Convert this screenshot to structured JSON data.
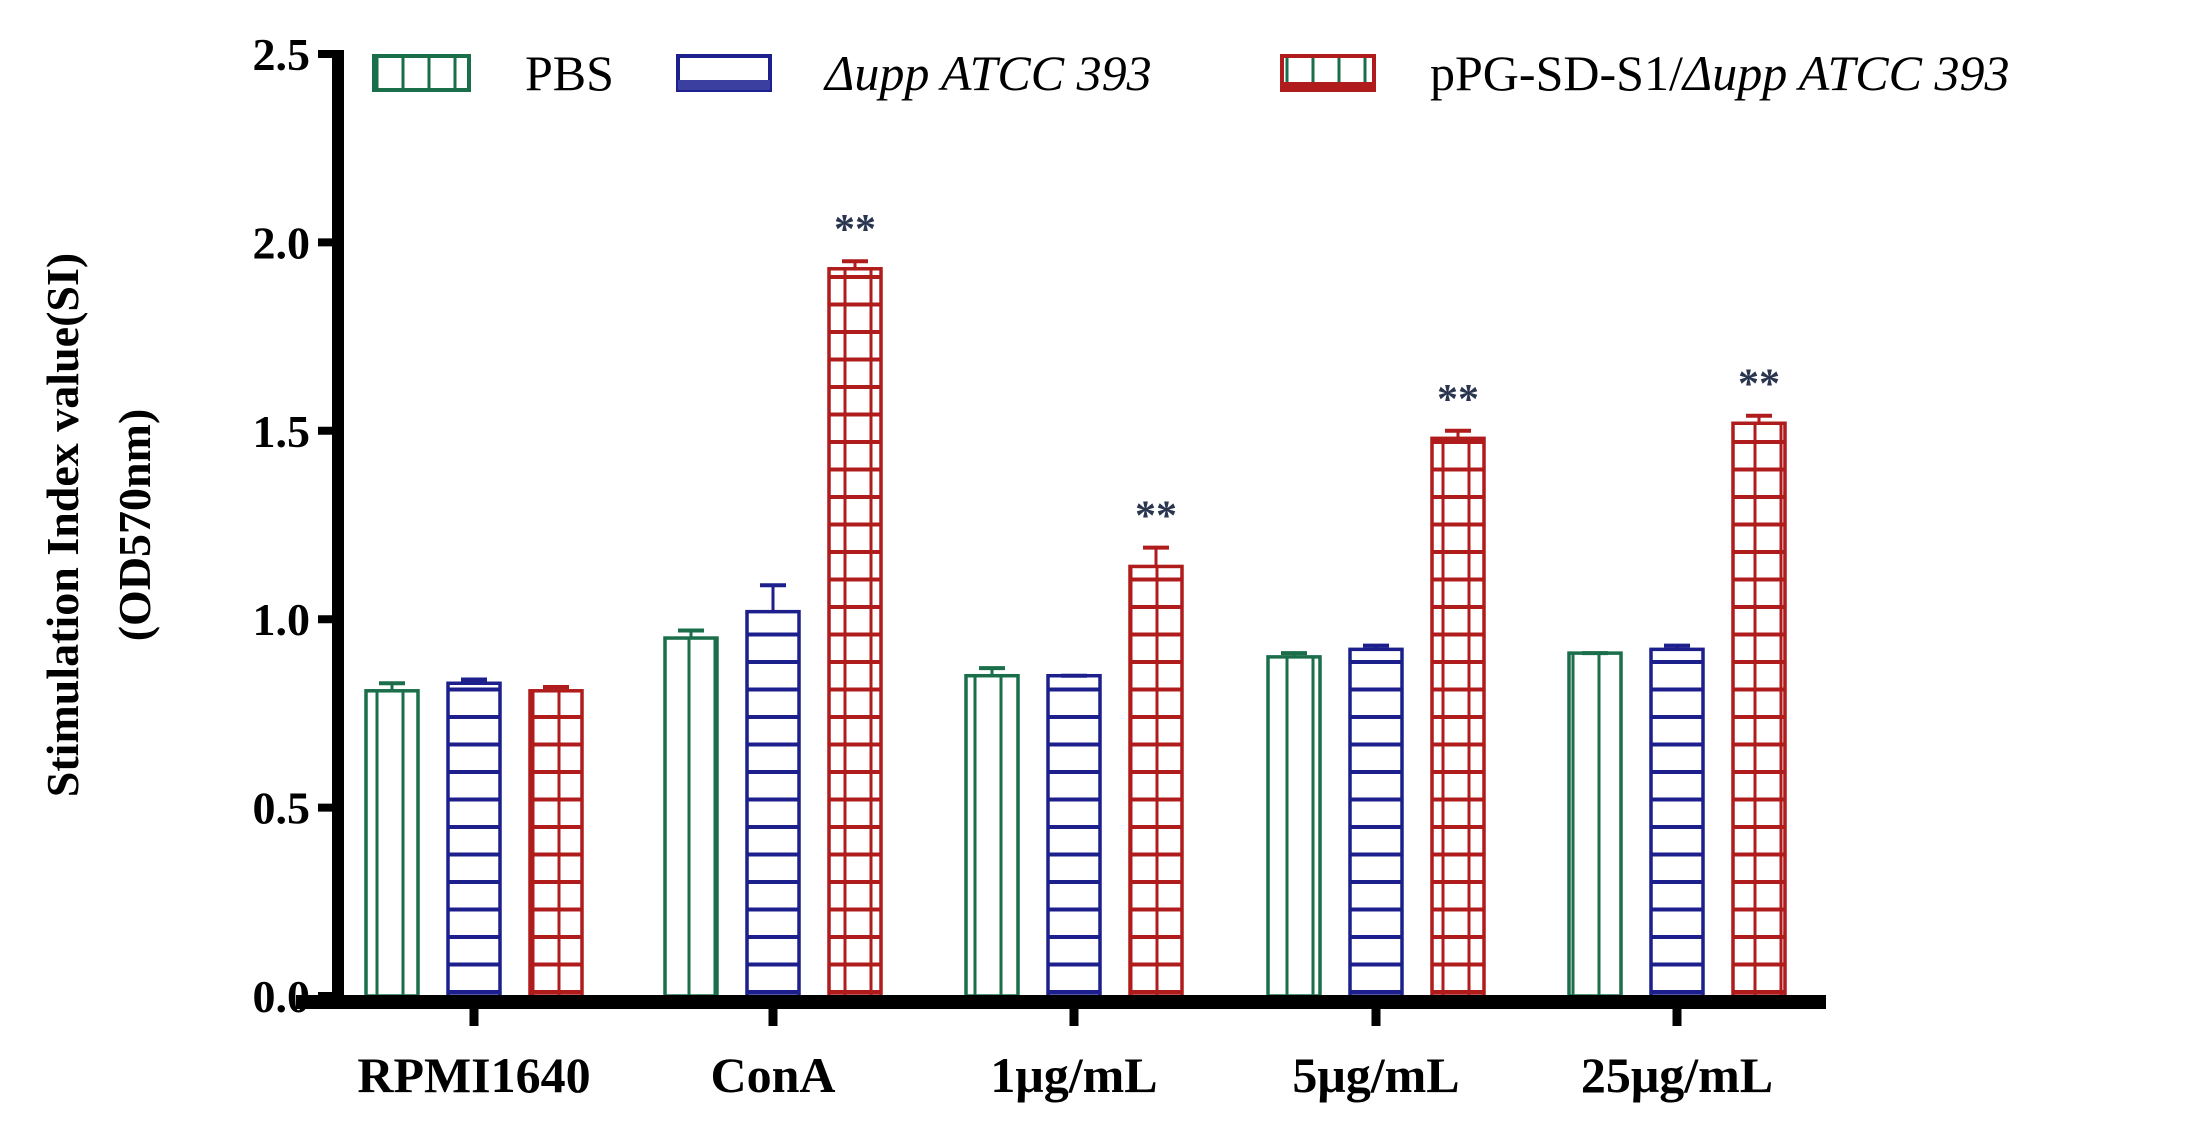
{
  "chart_data": {
    "type": "bar",
    "title": "",
    "xlabel": "",
    "ylabel": [
      "Stimulation Index value(SI)",
      "(OD570nm)"
    ],
    "ylim": [
      0,
      2.5
    ],
    "yticks": [
      "0.0",
      "0.5",
      "1.0",
      "1.5",
      "2.0",
      "2.5"
    ],
    "ytick_values": [
      0,
      0.5,
      1.0,
      1.5,
      2.0,
      2.5
    ],
    "categories": [
      "RPMI1640",
      "ConA",
      "1μg/mL",
      "5μg/mL",
      "25μg/mL"
    ],
    "legend_position": "top",
    "series": [
      {
        "name": "PBS",
        "italic": false,
        "color": "#1a6e4a",
        "pattern": "vertical",
        "values": [
          0.81,
          0.95,
          0.85,
          0.9,
          0.91
        ],
        "error_upper": [
          0.83,
          0.97,
          0.87,
          0.91,
          0.91
        ]
      },
      {
        "name": "Δupp ATCC 393",
        "italic": true,
        "color": "#1c1f8c",
        "pattern": "horizontal",
        "values": [
          0.83,
          1.02,
          0.85,
          0.92,
          0.92
        ],
        "error_upper": [
          0.84,
          1.09,
          0.85,
          0.93,
          0.93
        ]
      },
      {
        "name_plain": "pPG-SD-S1/",
        "name_italic": "Δupp ATCC 393",
        "color": "#b01c1c",
        "pattern": "grid",
        "values": [
          0.81,
          1.93,
          1.14,
          1.48,
          1.52
        ],
        "error_upper": [
          0.82,
          1.95,
          1.19,
          1.5,
          1.54
        ]
      }
    ],
    "annotations": [
      {
        "category": "ConA",
        "series": 2,
        "text": "**"
      },
      {
        "category": "1μg/mL",
        "series": 2,
        "text": "**"
      },
      {
        "category": "5μg/mL",
        "series": 2,
        "text": "**"
      },
      {
        "category": "25μg/mL",
        "series": 2,
        "text": "**"
      }
    ]
  }
}
